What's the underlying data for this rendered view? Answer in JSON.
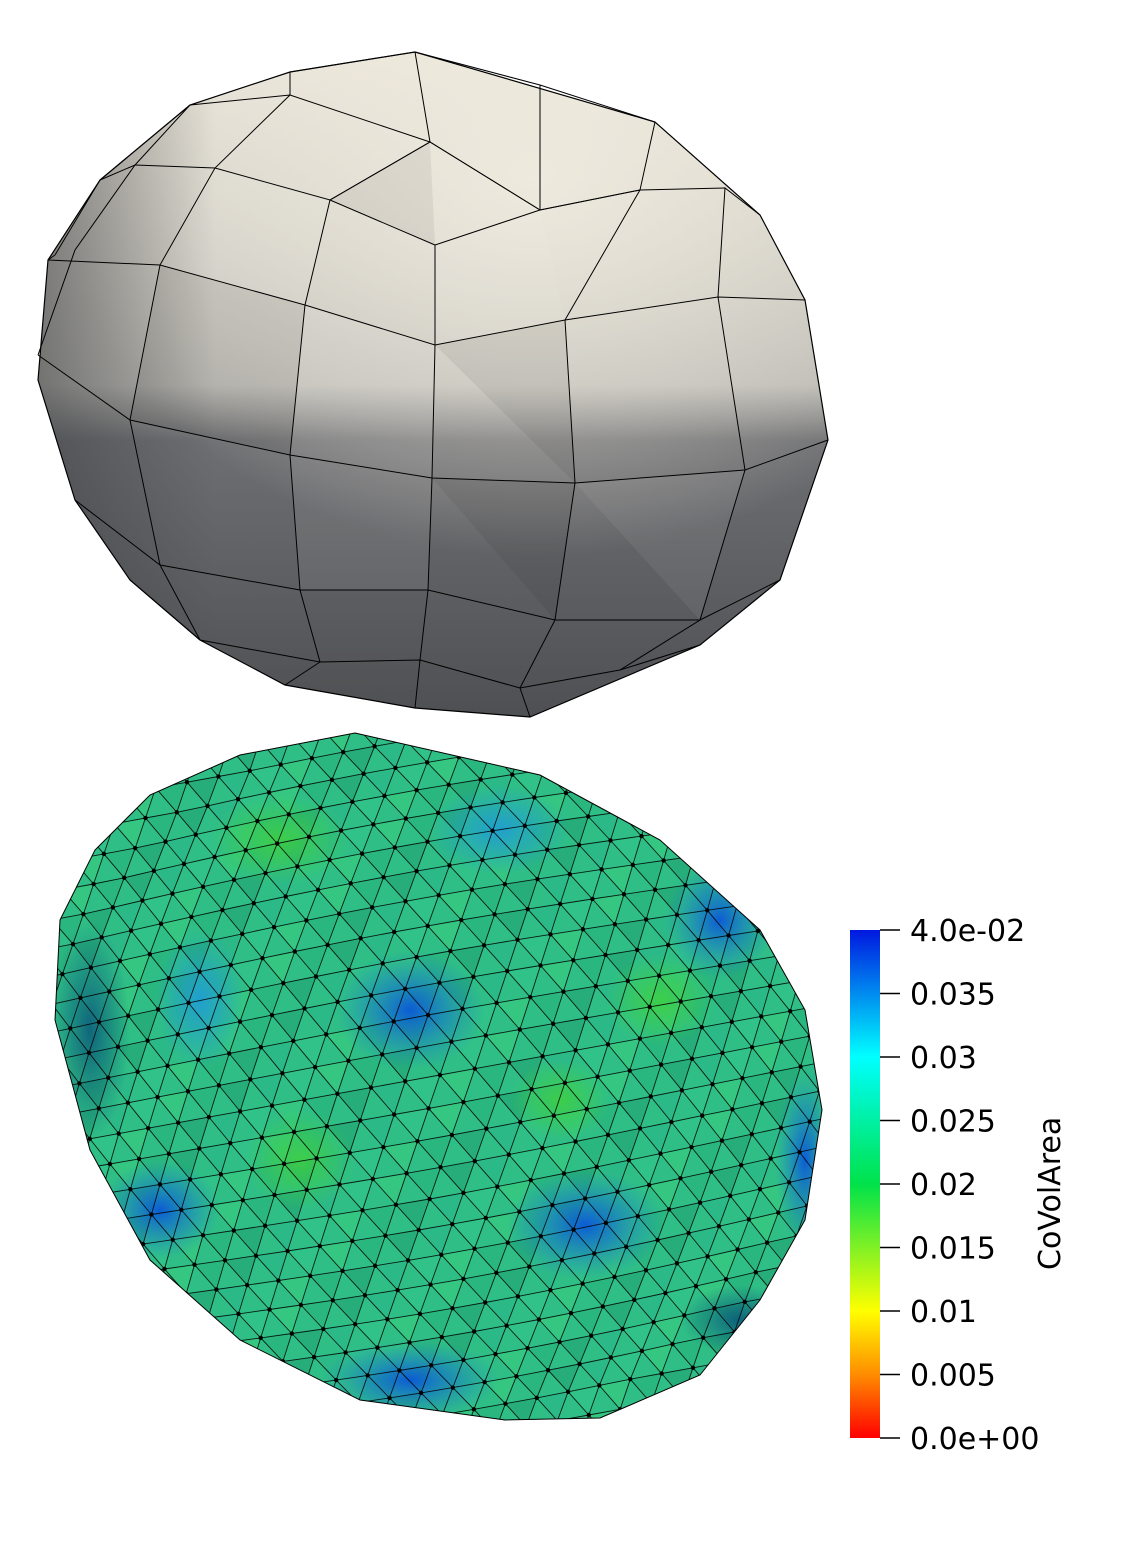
{
  "colorbar": {
    "title": "CoVolArea",
    "max_label": "4.0e-02",
    "min_label": "0.0e+00",
    "ticks": [
      {
        "value": 0.04,
        "label": "4.0e-02"
      },
      {
        "value": 0.035,
        "label": "0.035"
      },
      {
        "value": 0.03,
        "label": "0.03"
      },
      {
        "value": 0.025,
        "label": "0.025"
      },
      {
        "value": 0.02,
        "label": "0.02"
      },
      {
        "value": 0.015,
        "label": "0.015"
      },
      {
        "value": 0.01,
        "label": "0.01"
      },
      {
        "value": 0.005,
        "label": "0.005"
      },
      {
        "value": 0.0,
        "label": "0.0e+00"
      }
    ],
    "range": [
      0.0,
      0.04
    ],
    "colormap": [
      "#ff0000",
      "#ff8c00",
      "#ffff00",
      "#00ff00",
      "#00ffff",
      "#0000ff"
    ]
  },
  "top_mesh": {
    "description_color_light": "#e9e4d8",
    "description_color_dark": "#5c5d60",
    "edge_color": "#000000"
  },
  "bottom_mesh": {
    "edge_color": "#000000",
    "base_color": "#2fbf86"
  }
}
